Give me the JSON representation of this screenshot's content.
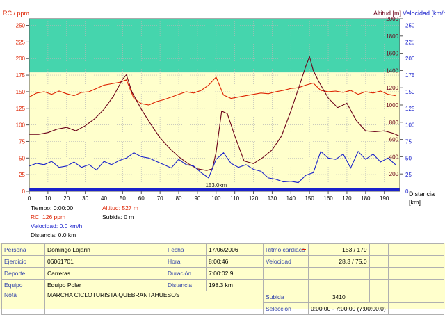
{
  "chart_data": {
    "type": "line",
    "xlabel": "Distancia [km]",
    "xlim": [
      0,
      198.3
    ],
    "xticks": [
      0,
      10,
      20,
      30,
      40,
      50,
      60,
      70,
      80,
      90,
      100,
      110,
      120,
      130,
      140,
      150,
      160,
      170,
      180,
      190
    ],
    "left_axis": {
      "label": "RC / ppm",
      "ylim": [
        0,
        260
      ],
      "ticks": [
        0,
        25,
        50,
        75,
        100,
        125,
        150,
        175,
        200,
        225,
        250
      ]
    },
    "altitude_axis": {
      "label": "Altitud [m]",
      "ylim": [
        0,
        2000
      ],
      "ticks": [
        200,
        400,
        600,
        800,
        1000,
        1200,
        1400,
        1600,
        1800,
        2000
      ]
    },
    "speed_axis": {
      "label": "Velocidad [km/h]",
      "ylim": [
        0,
        260
      ],
      "ticks": [
        0,
        25,
        50,
        75,
        100,
        125,
        150,
        175,
        200,
        225,
        250
      ]
    },
    "max_hr_zone": 179,
    "series": [
      {
        "name": "RC",
        "color": "#dd2200",
        "x": [
          0,
          4,
          8,
          12,
          16,
          20,
          24,
          28,
          32,
          36,
          40,
          44,
          48,
          52,
          56,
          60,
          64,
          68,
          72,
          76,
          80,
          84,
          88,
          92,
          96,
          100,
          104,
          108,
          112,
          116,
          120,
          124,
          128,
          132,
          136,
          140,
          144,
          148,
          152,
          156,
          160,
          164,
          168,
          172,
          176,
          180,
          184,
          188,
          192,
          196
        ],
        "y": [
          142,
          148,
          150,
          146,
          151,
          147,
          144,
          149,
          150,
          155,
          160,
          162,
          164,
          168,
          140,
          132,
          130,
          135,
          138,
          142,
          146,
          150,
          148,
          152,
          160,
          172,
          145,
          140,
          142,
          144,
          146,
          148,
          147,
          150,
          152,
          155,
          156,
          160,
          163,
          152,
          150,
          151,
          149,
          152,
          146,
          150,
          148,
          151,
          146,
          144
        ]
      },
      {
        "name": "Altitud",
        "color": "#6b0018",
        "x": [
          0,
          5,
          10,
          15,
          20,
          25,
          30,
          35,
          40,
          45,
          50,
          52,
          55,
          60,
          65,
          70,
          75,
          80,
          85,
          90,
          95,
          98,
          100,
          103,
          106,
          110,
          115,
          120,
          125,
          130,
          135,
          140,
          145,
          148,
          150,
          152,
          155,
          160,
          165,
          170,
          175,
          180,
          185,
          190,
          195,
          198
        ],
        "y": [
          660,
          660,
          680,
          720,
          740,
          700,
          760,
          840,
          950,
          1100,
          1300,
          1350,
          1150,
          950,
          780,
          620,
          500,
          400,
          320,
          260,
          240,
          260,
          450,
          930,
          900,
          640,
          350,
          320,
          390,
          480,
          640,
          930,
          1250,
          1450,
          1560,
          1400,
          1270,
          1080,
          970,
          1020,
          820,
          700,
          690,
          700,
          670,
          640
        ]
      },
      {
        "name": "Velocidad",
        "color": "#1a22cc",
        "x": [
          0,
          4,
          8,
          12,
          16,
          20,
          24,
          28,
          32,
          36,
          40,
          44,
          48,
          52,
          56,
          60,
          64,
          68,
          72,
          76,
          80,
          84,
          88,
          92,
          96,
          100,
          104,
          108,
          112,
          116,
          120,
          124,
          128,
          132,
          136,
          140,
          144,
          148,
          152,
          156,
          160,
          164,
          168,
          172,
          176,
          180,
          184,
          188,
          192,
          196
        ],
        "y": [
          38,
          42,
          40,
          45,
          36,
          38,
          44,
          36,
          40,
          32,
          45,
          40,
          46,
          50,
          58,
          52,
          50,
          45,
          40,
          35,
          48,
          40,
          38,
          28,
          20,
          48,
          58,
          42,
          36,
          40,
          33,
          30,
          20,
          18,
          14,
          15,
          13,
          24,
          28,
          60,
          50,
          48,
          56,
          35,
          60,
          48,
          56,
          44,
          50,
          40
        ]
      }
    ]
  },
  "readout": {
    "tiempo": "Tiempo: 0:00:00",
    "altitud": "Altitud: 527 m",
    "rc": "RC: 126 ppm",
    "subida": "Subida: 0 m",
    "velocidad": "Velocidad: 0.0 km/h",
    "distancia": "Distancia: 0.0 km"
  },
  "cursor_label": "153.0km",
  "summary": {
    "persona_label": "Persona",
    "persona": "Domingo Lajarin",
    "ejercicio_label": "Ejercicio",
    "ejercicio": "06061701",
    "deporte_label": "Deporte",
    "deporte": "Carreras",
    "equipo_label": "Equipo",
    "equipo": "Equipo Polar",
    "nota_label": "Nota",
    "nota": "MARCHA CICLOTURISTA QUEBRANTAHUESOS",
    "fecha_label": "Fecha",
    "fecha": "17/06/2006",
    "hora_label": "Hora",
    "hora": "8:00:46",
    "duracion_label": "Duración",
    "duracion": "7:00:02.9",
    "distancia_label": "Distancia",
    "distancia": "198.3 km",
    "ritmo_label": "Ritmo cardiaco",
    "ritmo": "153 / 179",
    "velocidad_label": "Velocidad",
    "velocidad": "28.3 / 75.0",
    "subida_label": "Subida",
    "subida": "3410",
    "seleccion_label": "Selección",
    "seleccion": "0:00:00 - 7:00:00 (7:00:00.0)"
  }
}
